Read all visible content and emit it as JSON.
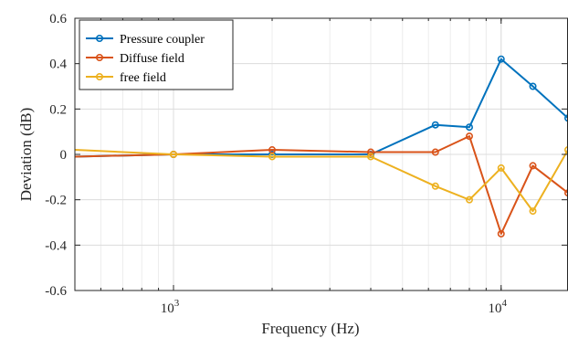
{
  "chart_data": {
    "type": "line",
    "title": "",
    "xlabel": "Frequency (Hz)",
    "ylabel": "Deviation (dB)",
    "xscale": "log",
    "xlim": [
      500,
      16000
    ],
    "ylim": [
      -0.6,
      0.6
    ],
    "grid": true,
    "legend_position": "top-left",
    "x_ticks": [
      {
        "value": 1000,
        "base": "10",
        "exp": "3"
      },
      {
        "value": 10000,
        "base": "10",
        "exp": "4"
      }
    ],
    "y_ticks": [
      {
        "value": -0.6,
        "label": "-0.6"
      },
      {
        "value": -0.4,
        "label": "-0.4"
      },
      {
        "value": -0.2,
        "label": "-0.2"
      },
      {
        "value": 0,
        "label": "0"
      },
      {
        "value": 0.2,
        "label": "0.2"
      },
      {
        "value": 0.4,
        "label": "0.4"
      },
      {
        "value": 0.6,
        "label": "0.6"
      }
    ],
    "series": [
      {
        "name": "Pressure coupler",
        "color": "#0072BD",
        "points": [
          [
            500,
            -0.01
          ],
          [
            1000,
            0.0
          ],
          [
            2000,
            0.0
          ],
          [
            4000,
            0.0
          ],
          [
            6300,
            0.13
          ],
          [
            8000,
            0.12
          ],
          [
            10000,
            0.42
          ],
          [
            12500,
            0.3
          ],
          [
            16000,
            0.16
          ]
        ]
      },
      {
        "name": "Diffuse field",
        "color": "#D95319",
        "points": [
          [
            500,
            -0.01
          ],
          [
            1000,
            0.0
          ],
          [
            2000,
            0.02
          ],
          [
            4000,
            0.01
          ],
          [
            6300,
            0.01
          ],
          [
            8000,
            0.08
          ],
          [
            10000,
            -0.35
          ],
          [
            12500,
            -0.05
          ],
          [
            16000,
            -0.17
          ]
        ]
      },
      {
        "name": "free field",
        "color": "#EDB120",
        "points": [
          [
            500,
            0.02
          ],
          [
            1000,
            0.0
          ],
          [
            2000,
            -0.01
          ],
          [
            4000,
            -0.01
          ],
          [
            6300,
            -0.14
          ],
          [
            8000,
            -0.2
          ],
          [
            10000,
            -0.06
          ],
          [
            12500,
            -0.25
          ],
          [
            16000,
            0.02
          ]
        ]
      }
    ]
  }
}
